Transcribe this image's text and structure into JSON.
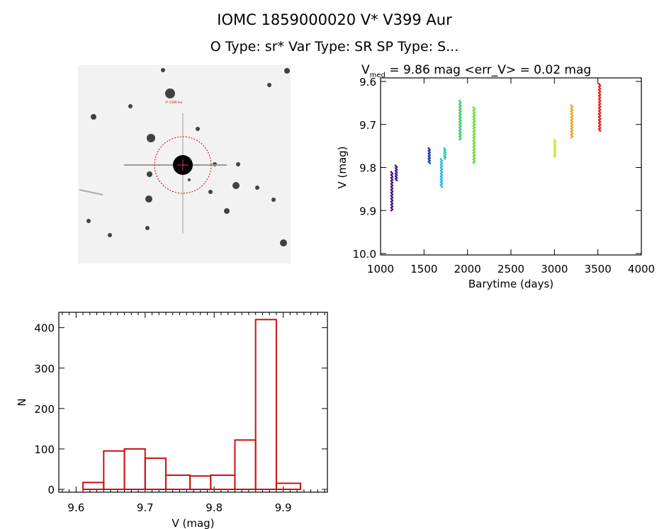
{
  "title": {
    "line1": "IOMC 1859000020    V* V399 Aur",
    "line2": "O Type: sr*  Var Type: SR  SP Type: S..."
  },
  "chart_data": [
    {
      "type": "image",
      "description_label": "V* V399 Aur"
    },
    {
      "type": "scatter",
      "title": "V_med = 9.86 mag <err_V> = 0.02 mag",
      "title_main": "V",
      "title_sub": "med",
      "title_rest": " = 9.86 mag <err_V> = 0.02 mag",
      "xlabel": "Barytime (days)",
      "ylabel": "V (mag)",
      "xlim": [
        1000,
        4000
      ],
      "ylim": [
        10.0,
        9.6
      ],
      "y_inverted": true,
      "xticks": [
        "1000",
        "1500",
        "2000",
        "2500",
        "3000",
        "3500",
        "4000"
      ],
      "yticks": [
        "9.6",
        "9.7",
        "9.8",
        "9.9",
        "10.0"
      ],
      "groups": [
        {
          "x": 1130,
          "ymin": 9.81,
          "ymax": 9.9,
          "color": "#4b0a7a"
        },
        {
          "x": 1180,
          "ymin": 9.795,
          "ymax": 9.83,
          "color": "#3a1aa0"
        },
        {
          "x": 1560,
          "ymin": 9.755,
          "ymax": 9.79,
          "color": "#1d3aa8"
        },
        {
          "x": 1700,
          "ymin": 9.78,
          "ymax": 9.845,
          "color": "#20b8e0"
        },
        {
          "x": 1740,
          "ymin": 9.755,
          "ymax": 9.78,
          "color": "#30c8b8"
        },
        {
          "x": 1915,
          "ymin": 9.645,
          "ymax": 9.735,
          "color": "#30d060"
        },
        {
          "x": 2075,
          "ymin": 9.66,
          "ymax": 9.79,
          "color": "#60e030"
        },
        {
          "x": 3005,
          "ymin": 9.735,
          "ymax": 9.775,
          "color": "#c8e830"
        },
        {
          "x": 3200,
          "ymin": 9.655,
          "ymax": 9.73,
          "color": "#f0a020"
        },
        {
          "x": 3520,
          "ymin": 9.605,
          "ymax": 9.715,
          "color": "#e01818"
        }
      ]
    },
    {
      "type": "bar",
      "xlabel": "V (mag)",
      "ylabel": "N",
      "xlim": [
        9.575,
        9.964
      ],
      "ylim": [
        -7,
        438
      ],
      "xticks": [
        "9.6",
        "9.7",
        "9.8",
        "9.9"
      ],
      "yticks": [
        "0",
        "100",
        "200",
        "300",
        "400"
      ],
      "bin_edges": [
        9.61,
        9.64,
        9.67,
        9.7,
        9.73,
        9.765,
        9.795,
        9.83,
        9.86,
        9.89,
        9.925
      ],
      "values": [
        17,
        95,
        100,
        77,
        35,
        33,
        35,
        122,
        420,
        15
      ],
      "color": "#cc1111"
    }
  ]
}
